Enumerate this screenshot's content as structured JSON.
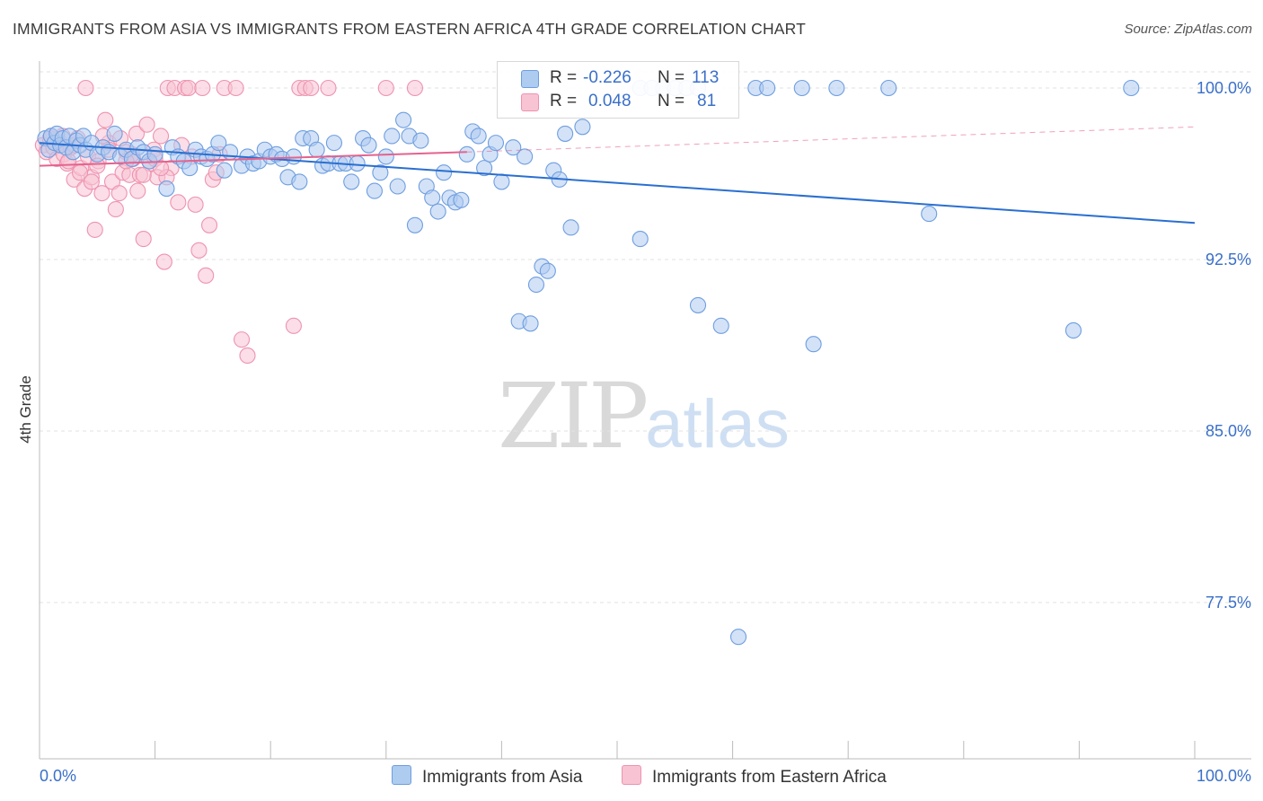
{
  "title": "IMMIGRANTS FROM ASIA VS IMMIGRANTS FROM EASTERN AFRICA 4TH GRADE CORRELATION CHART",
  "source": "Source: ZipAtlas.com",
  "watermark": {
    "zip": "ZIP",
    "atlas": "atlas"
  },
  "legend": {
    "asia": {
      "r_label": "R = ",
      "r_value": "-0.226",
      "n_label": "N = ",
      "n_value": "113"
    },
    "africa": {
      "r_label": "R = ",
      "r_value": "0.048",
      "n_label": "N = ",
      "n_value": "81"
    }
  },
  "bottom_legend": {
    "asia": "Immigrants from Asia",
    "africa": "Immigrants from Eastern Africa"
  },
  "colors": {
    "asia_fill": "#aecbf0",
    "asia_stroke": "#6e9ee0",
    "asia_line": "#2a6fd0",
    "africa_fill": "#f8c3d3",
    "africa_stroke": "#ee93b0",
    "africa_line": "#e4638e",
    "tick_label": "#3a6fc9"
  },
  "chart_data": {
    "type": "scatter",
    "xlabel": "",
    "ylabel": "4th Grade",
    "xlim": [
      0,
      100
    ],
    "ylim": [
      70,
      101.5
    ],
    "x_tick_labels": [
      "0.0%",
      "100.0%"
    ],
    "y_ticks": [
      77.5,
      85.0,
      92.5,
      100.0
    ],
    "y_tick_labels": [
      "77.5%",
      "85.0%",
      "92.5%",
      "100.0%"
    ],
    "grid": true,
    "series": [
      {
        "name": "Immigrants from Asia",
        "trend": {
          "x": [
            0,
            100
          ],
          "y": [
            97.6,
            94.1
          ]
        },
        "points": [
          [
            0.5,
            97.8
          ],
          [
            0.8,
            97.3
          ],
          [
            1.0,
            97.9
          ],
          [
            1.3,
            97.6
          ],
          [
            1.5,
            98.0
          ],
          [
            1.8,
            97.5
          ],
          [
            2.0,
            97.8
          ],
          [
            2.3,
            97.4
          ],
          [
            2.6,
            97.9
          ],
          [
            2.9,
            97.2
          ],
          [
            3.2,
            97.7
          ],
          [
            3.5,
            97.5
          ],
          [
            3.8,
            97.9
          ],
          [
            4.0,
            97.3
          ],
          [
            4.5,
            97.6
          ],
          [
            5.0,
            97.1
          ],
          [
            5.5,
            97.4
          ],
          [
            6.0,
            97.2
          ],
          [
            6.5,
            98.0
          ],
          [
            7.0,
            97.0
          ],
          [
            7.5,
            97.3
          ],
          [
            8.0,
            96.9
          ],
          [
            8.5,
            97.4
          ],
          [
            9.0,
            97.2
          ],
          [
            9.5,
            96.8
          ],
          [
            10.0,
            97.1
          ],
          [
            11.0,
            95.6
          ],
          [
            11.5,
            97.4
          ],
          [
            12.0,
            97.0
          ],
          [
            12.5,
            96.8
          ],
          [
            13.0,
            96.5
          ],
          [
            13.5,
            97.3
          ],
          [
            14.0,
            97.0
          ],
          [
            14.5,
            96.9
          ],
          [
            15.0,
            97.1
          ],
          [
            15.5,
            97.6
          ],
          [
            16.0,
            96.4
          ],
          [
            16.5,
            97.2
          ],
          [
            17.5,
            96.6
          ],
          [
            18.0,
            97.0
          ],
          [
            18.5,
            96.7
          ],
          [
            19.0,
            96.8
          ],
          [
            19.5,
            97.3
          ],
          [
            20.0,
            97.0
          ],
          [
            20.5,
            97.1
          ],
          [
            21.0,
            96.9
          ],
          [
            21.5,
            96.1
          ],
          [
            22.0,
            97.0
          ],
          [
            22.5,
            95.9
          ],
          [
            22.8,
            97.8
          ],
          [
            23.5,
            97.8
          ],
          [
            24.0,
            97.3
          ],
          [
            24.5,
            96.6
          ],
          [
            25.0,
            96.7
          ],
          [
            25.5,
            97.6
          ],
          [
            26.0,
            96.7
          ],
          [
            26.5,
            96.7
          ],
          [
            27.0,
            95.9
          ],
          [
            27.5,
            96.7
          ],
          [
            28.0,
            97.8
          ],
          [
            28.5,
            97.5
          ],
          [
            29.0,
            95.5
          ],
          [
            29.5,
            96.3
          ],
          [
            30.0,
            97.0
          ],
          [
            30.5,
            97.9
          ],
          [
            31.0,
            95.7
          ],
          [
            31.5,
            98.6
          ],
          [
            32.0,
            97.9
          ],
          [
            32.5,
            94.0
          ],
          [
            33.0,
            97.7
          ],
          [
            33.5,
            95.7
          ],
          [
            34.0,
            95.2
          ],
          [
            34.5,
            94.6
          ],
          [
            35.0,
            96.3
          ],
          [
            35.5,
            95.2
          ],
          [
            36.0,
            95.0
          ],
          [
            36.5,
            95.1
          ],
          [
            37.0,
            97.1
          ],
          [
            37.5,
            98.1
          ],
          [
            38.0,
            97.9
          ],
          [
            38.5,
            96.5
          ],
          [
            39.0,
            97.1
          ],
          [
            39.5,
            97.6
          ],
          [
            40.0,
            95.9
          ],
          [
            41.0,
            97.4
          ],
          [
            41.5,
            89.8
          ],
          [
            42.0,
            97.0
          ],
          [
            42.5,
            89.7
          ],
          [
            43.0,
            91.4
          ],
          [
            43.5,
            92.2
          ],
          [
            44.0,
            92.0
          ],
          [
            44.5,
            96.4
          ],
          [
            45.0,
            96.0
          ],
          [
            45.5,
            98.0
          ],
          [
            46.0,
            93.9
          ],
          [
            47.0,
            98.3
          ],
          [
            52.0,
            100.0
          ],
          [
            53.0,
            100.0
          ],
          [
            54.0,
            100.0
          ],
          [
            55.0,
            100.0
          ],
          [
            56.0,
            100.0
          ],
          [
            57.0,
            100.0
          ],
          [
            62.0,
            100.0
          ],
          [
            63.0,
            100.0
          ],
          [
            66.0,
            100.0
          ],
          [
            69.0,
            100.0
          ],
          [
            73.5,
            100.0
          ],
          [
            94.5,
            100.0
          ],
          [
            52.0,
            93.4
          ],
          [
            57.0,
            90.5
          ],
          [
            59.0,
            89.6
          ],
          [
            67.0,
            88.8
          ],
          [
            77.0,
            94.5
          ],
          [
            60.5,
            76.0
          ],
          [
            89.5,
            89.4
          ]
        ]
      },
      {
        "name": "Immigrants from Eastern Africa",
        "trend": {
          "x": [
            0,
            37
          ],
          "y": [
            96.6,
            97.2
          ]
        },
        "trend_dashed": {
          "x": [
            37,
            100
          ],
          "y": [
            97.2,
            98.3
          ]
        },
        "points": [
          [
            0.3,
            97.5
          ],
          [
            0.6,
            97.2
          ],
          [
            0.9,
            97.8
          ],
          [
            1.2,
            97.4
          ],
          [
            1.5,
            96.9
          ],
          [
            1.8,
            97.6
          ],
          [
            2.1,
            97.1
          ],
          [
            2.4,
            96.7
          ],
          [
            2.7,
            97.4
          ],
          [
            3.0,
            96.0
          ],
          [
            3.3,
            97.8
          ],
          [
            3.6,
            96.5
          ],
          [
            3.9,
            95.6
          ],
          [
            4.2,
            97.0
          ],
          [
            4.5,
            96.1
          ],
          [
            4.8,
            93.8
          ],
          [
            5.1,
            96.8
          ],
          [
            5.4,
            95.4
          ],
          [
            5.7,
            98.6
          ],
          [
            6.0,
            97.6
          ],
          [
            6.3,
            95.9
          ],
          [
            6.6,
            94.7
          ],
          [
            6.9,
            95.4
          ],
          [
            7.2,
            96.3
          ],
          [
            7.5,
            97.2
          ],
          [
            7.8,
            96.2
          ],
          [
            8.1,
            96.9
          ],
          [
            8.4,
            98.0
          ],
          [
            8.7,
            96.2
          ],
          [
            9.0,
            93.4
          ],
          [
            9.3,
            98.4
          ],
          [
            9.6,
            96.7
          ],
          [
            9.9,
            97.3
          ],
          [
            10.2,
            96.1
          ],
          [
            10.5,
            97.9
          ],
          [
            10.8,
            92.4
          ],
          [
            11.1,
            100.0
          ],
          [
            11.4,
            96.5
          ],
          [
            11.7,
            100.0
          ],
          [
            12.0,
            95.0
          ],
          [
            12.3,
            97.5
          ],
          [
            12.6,
            100.0
          ],
          [
            12.9,
            100.0
          ],
          [
            13.2,
            97.0
          ],
          [
            13.5,
            94.9
          ],
          [
            13.8,
            92.9
          ],
          [
            14.1,
            100.0
          ],
          [
            14.4,
            91.8
          ],
          [
            14.7,
            94.0
          ],
          [
            15.0,
            96.0
          ],
          [
            15.3,
            96.3
          ],
          [
            15.6,
            97.1
          ],
          [
            16.0,
            100.0
          ],
          [
            17.0,
            100.0
          ],
          [
            17.5,
            89.0
          ],
          [
            18.0,
            88.3
          ],
          [
            22.5,
            100.0
          ],
          [
            23.0,
            100.0
          ],
          [
            23.5,
            100.0
          ],
          [
            25.0,
            100.0
          ],
          [
            22.0,
            89.6
          ],
          [
            30.0,
            100.0
          ],
          [
            32.5,
            100.0
          ],
          [
            4.0,
            100.0
          ],
          [
            5.5,
            97.9
          ],
          [
            6.0,
            97.3
          ],
          [
            2.0,
            97.9
          ],
          [
            3.0,
            97.5
          ],
          [
            1.0,
            97.9
          ],
          [
            7.0,
            97.8
          ],
          [
            8.0,
            97.1
          ],
          [
            9.0,
            96.2
          ],
          [
            10.0,
            96.9
          ],
          [
            11.0,
            96.1
          ],
          [
            2.5,
            96.8
          ],
          [
            3.5,
            96.3
          ],
          [
            4.5,
            95.9
          ],
          [
            5.0,
            96.6
          ],
          [
            7.5,
            96.8
          ],
          [
            8.5,
            95.5
          ],
          [
            10.5,
            96.5
          ]
        ]
      }
    ]
  }
}
